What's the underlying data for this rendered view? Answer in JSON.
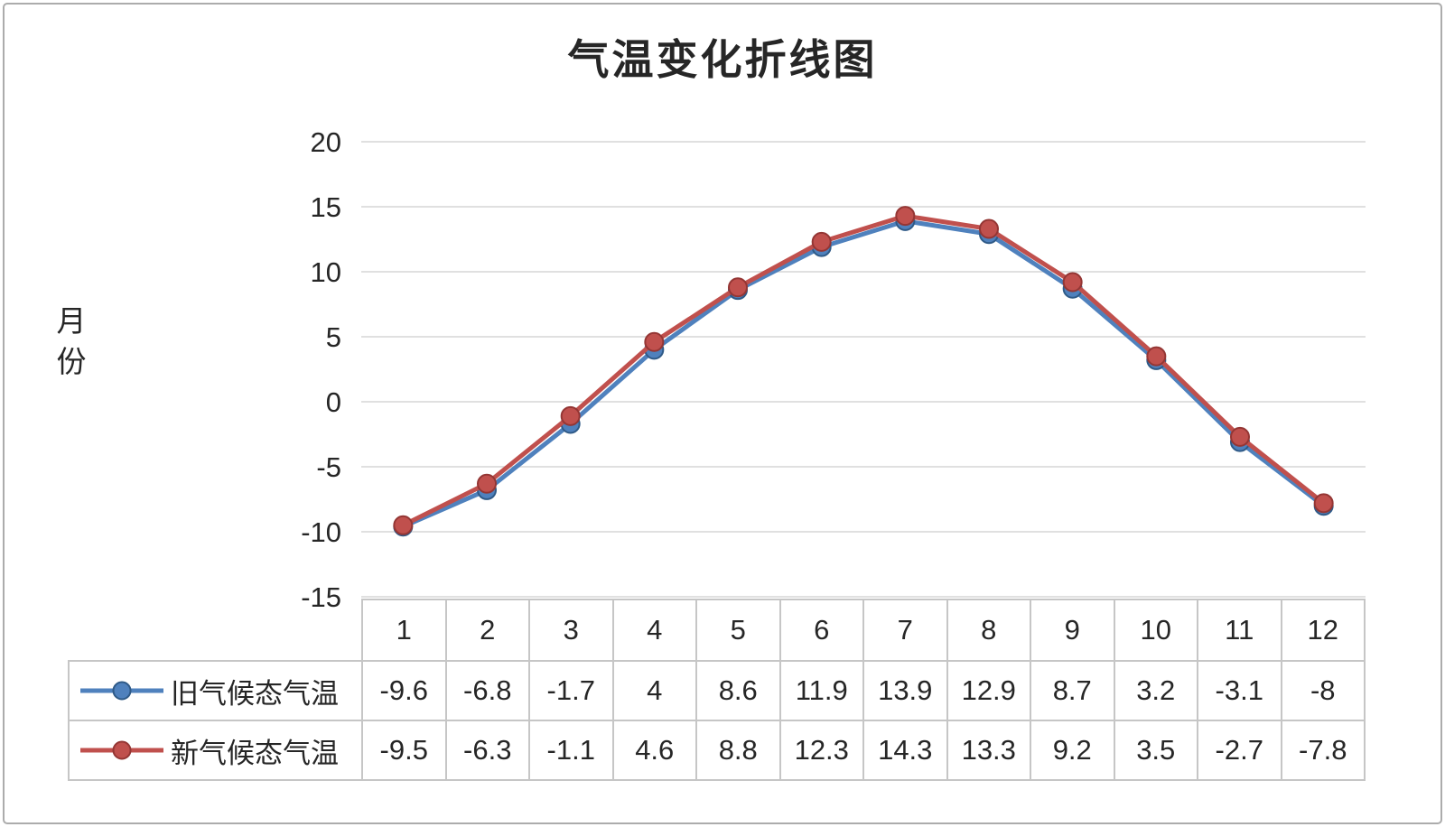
{
  "frame": {
    "border_color": "#acacac",
    "background": "#ffffff"
  },
  "chart": {
    "colors": {
      "old_series": "#4F81BD",
      "new_series": "#C0504D",
      "gridline": "#d6d6d6",
      "text": "#262626",
      "table_border": "#c6c6c6"
    }
  },
  "chart_data": {
    "type": "line",
    "title": "气温变化折线图",
    "xlabel": "",
    "ylabel": "月份",
    "categories": [
      "1",
      "2",
      "3",
      "4",
      "5",
      "6",
      "7",
      "8",
      "9",
      "10",
      "11",
      "12"
    ],
    "series": [
      {
        "name": "旧气候态气温",
        "color": "#4F81BD",
        "marker_border": "#2F5A87",
        "values": [
          -9.6,
          -6.8,
          -1.7,
          4,
          8.6,
          11.9,
          13.9,
          12.9,
          8.7,
          3.2,
          -3.1,
          -8
        ]
      },
      {
        "name": "新气候态气温",
        "color": "#C0504D",
        "marker_border": "#943634",
        "values": [
          -9.5,
          -6.3,
          -1.1,
          4.6,
          8.8,
          12.3,
          14.3,
          13.3,
          9.2,
          3.5,
          -2.7,
          -7.8
        ]
      }
    ],
    "ylim": [
      -15,
      20
    ],
    "yticks": [
      20,
      15,
      10,
      5,
      0,
      -5,
      -10,
      -15
    ],
    "grid": true,
    "legend_position": "table-left",
    "data_table_shown": true
  }
}
